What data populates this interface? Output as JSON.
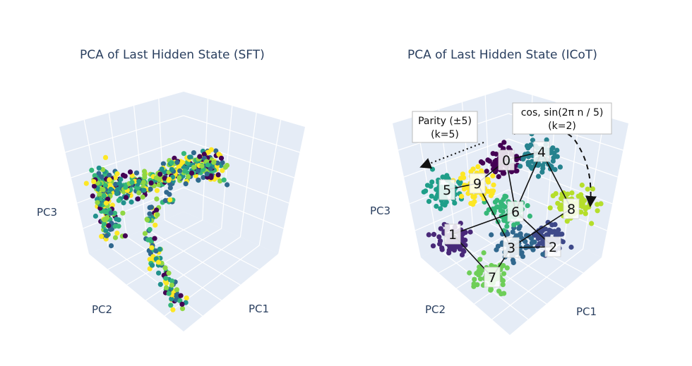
{
  "chart_data": [
    {
      "type": "scatter",
      "title": "PCA of Last Hidden State (SFT)",
      "axes": {
        "x": "PC1",
        "y": "PC2",
        "z": "PC3"
      },
      "colorscale": [
        "#440154",
        "#31688e",
        "#21918c",
        "#35b779",
        "#90d743",
        "#fde725"
      ],
      "grid": true
    },
    {
      "type": "scatter",
      "title": "PCA of Last Hidden State (ICoT)",
      "axes": {
        "x": "PC1",
        "y": "PC2",
        "z": "PC3"
      },
      "grid": true,
      "clusters": [
        {
          "digit": "0",
          "color": "#440154"
        },
        {
          "digit": "1",
          "color": "#482878"
        },
        {
          "digit": "2",
          "color": "#3e4989"
        },
        {
          "digit": "3",
          "color": "#31688e"
        },
        {
          "digit": "4",
          "color": "#26828e"
        },
        {
          "digit": "5",
          "color": "#1f9e89"
        },
        {
          "digit": "6",
          "color": "#35b779"
        },
        {
          "digit": "7",
          "color": "#6ece58"
        },
        {
          "digit": "8",
          "color": "#b5de2b"
        },
        {
          "digit": "9",
          "color": "#fde725"
        }
      ],
      "annotations": [
        {
          "line1": "Parity (±5)",
          "line2": "(k=5)"
        },
        {
          "line1": "cos, sin(2π n / 5)",
          "line2": "(k=2)"
        }
      ]
    }
  ]
}
